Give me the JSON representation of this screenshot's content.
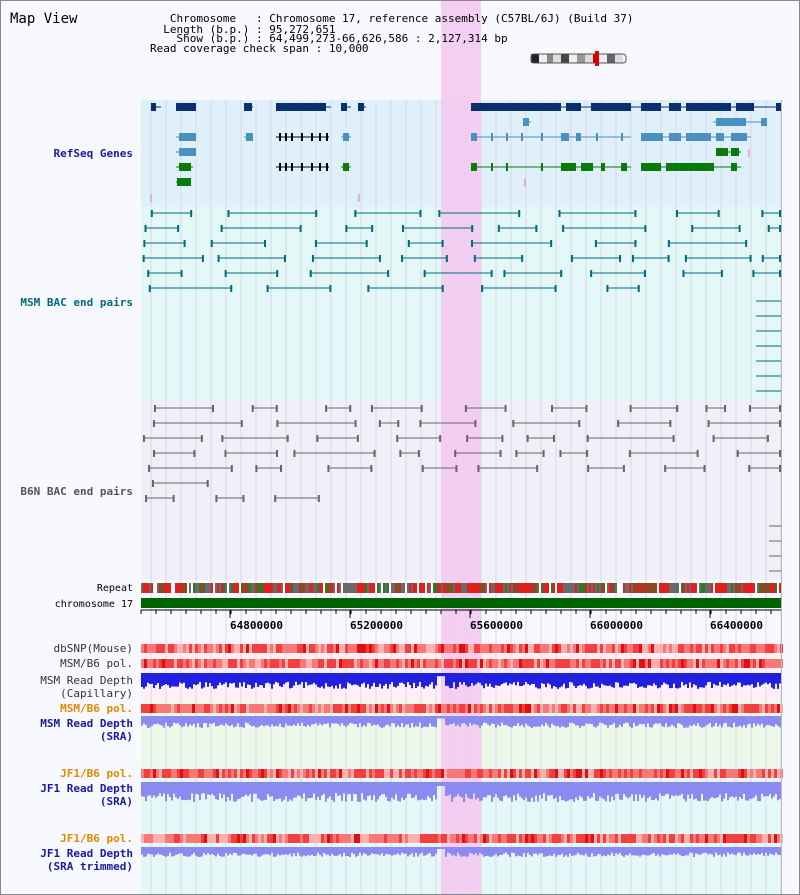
{
  "header": {
    "view_title": "Map View",
    "chromosome_label": "   Chromosome",
    "chromosome_value": ": Chromosome 17, reference assembly (C57BL/6J) (Build 37)",
    "length_label": "  Length (b.p.)",
    "length_value": ": 95,272,651",
    "show_label": "    Show (b.p.)",
    "show_value": ": 64,499,273-66,626,586 : 2,127,314 bp",
    "coverage_label": "Read coverage check span",
    "coverage_value": ": 10,000"
  },
  "tracks": {
    "refseq": "RefSeq Genes",
    "msm_bac": "MSM BAC end pairs",
    "b6n_bac": "B6N BAC end pairs",
    "repeat": "Repeat",
    "chromosome": "chromosome 17",
    "dbsnp": "dbSNP(Mouse)",
    "msm_b6_pol": "MSM/B6 pol.",
    "msm_read_depth_cap_1": "MSM Read Depth",
    "msm_read_depth_cap_2": "(Capillary)",
    "msm_b6_pol_sra": "MSM/B6 pol.",
    "msm_read_depth_sra_1": "MSM Read Depth",
    "msm_read_depth_sra_2": "(SRA)",
    "jf1_b6_pol": "JF1/B6 pol.",
    "jf1_read_depth_1": "JF1 Read Depth",
    "jf1_read_depth_2": "(SRA)",
    "jf1_b6_pol_2": "JF1/B6 pol.",
    "jf1_read_depth_trim_1": "JF1 Read Depth",
    "jf1_read_depth_trim_2": "(SRA trimmed)"
  },
  "ruler": {
    "ticks": [
      "64800000",
      "65200000",
      "65600000",
      "66000000",
      "66400000"
    ]
  },
  "colors": {
    "highlight": "#f5c8f0",
    "refseq_bg": "#dff0fa",
    "msm_bg": "#e4f8f8",
    "b6n_bg": "#f0f0f8",
    "gene_dark": "#0a2f6e",
    "gene_mid": "#4a90c0",
    "gene_green": "#0a7a0a",
    "bac_teal": "#006a80",
    "bac_grey": "#666666",
    "chromosome_green": "#006400",
    "read_depth": "#2020e0",
    "read_depth_light": "#8a8af0",
    "pol_red": "#f02020"
  }
}
